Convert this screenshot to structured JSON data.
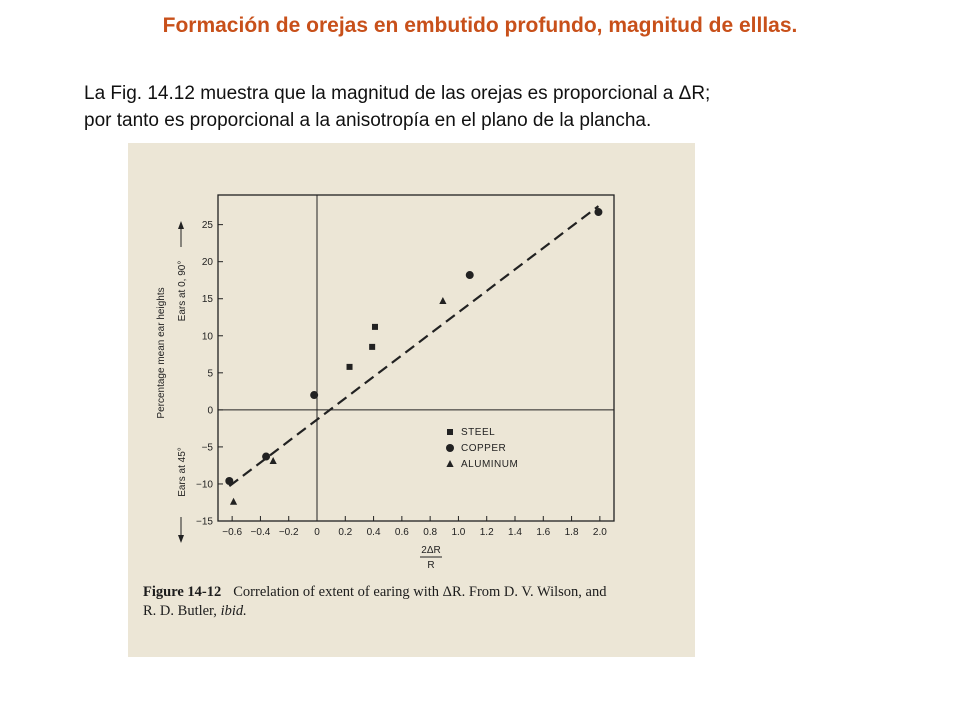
{
  "slide": {
    "title": "Formación de orejas en embutido profundo, magnitud de elllas.",
    "paragraph_lines": [
      "La Fig. 14.12 muestra que la magnitud de las orejas es proporcional a ΔR;",
      "por tanto es proporcional a la anisotropía en el plano de la plancha."
    ]
  },
  "figure": {
    "number": "Figure 14-12",
    "caption_main": "Correlation of extent of earing with ΔR. From D. V. Wilson, and",
    "caption_line2_plain": "R. D. Butler,",
    "caption_line2_italic": "ibid."
  },
  "chart_data": {
    "type": "scatter",
    "ylabel": "Percentage mean ear heights",
    "ylabel_top": "Ears at 0, 90°",
    "ylabel_bottom": "Ears at 45°",
    "xlabel_numerator": "2ΔR",
    "xlabel_denominator": "R",
    "xlim": [
      -0.7,
      2.1
    ],
    "ylim": [
      -15,
      29
    ],
    "x_ticks": [
      -0.6,
      -0.4,
      -0.2,
      0,
      0.2,
      0.4,
      0.6,
      0.8,
      1.0,
      1.2,
      1.4,
      1.6,
      1.8,
      2.0
    ],
    "x_tick_labels": [
      "−0.6",
      "−0.4",
      "−0.2",
      "0",
      "0.2",
      "0.4",
      "0.6",
      "0.8",
      "1.0",
      "1.2",
      "1.4",
      "1.6",
      "1.8",
      "2.0"
    ],
    "y_ticks": [
      -15,
      -10,
      -5,
      0,
      5,
      10,
      15,
      20,
      25
    ],
    "y_tick_labels": [
      "−15",
      "−10",
      "−5",
      "0",
      "5",
      "10",
      "15",
      "20",
      "25"
    ],
    "grid": false,
    "reference_lines": {
      "x": 0,
      "y": 0
    },
    "legend_placement": "lower-right",
    "series": [
      {
        "name": "STEEL",
        "marker": "square",
        "points": [
          [
            0.23,
            5.8
          ],
          [
            0.39,
            8.5
          ],
          [
            0.41,
            11.2
          ]
        ]
      },
      {
        "name": "COPPER",
        "marker": "circle",
        "points": [
          [
            -0.62,
            -9.6
          ],
          [
            -0.36,
            -6.3
          ],
          [
            -0.02,
            2.0
          ],
          [
            1.08,
            18.2
          ],
          [
            1.99,
            26.7
          ]
        ]
      },
      {
        "name": "ALUMINUM",
        "marker": "triangle",
        "points": [
          [
            -0.59,
            -12.4
          ],
          [
            -0.31,
            -6.9
          ],
          [
            0.89,
            14.7
          ]
        ]
      }
    ],
    "fit_line": {
      "style": "dashed",
      "from": [
        -0.62,
        -10.3
      ],
      "to": [
        1.99,
        27.5
      ]
    }
  }
}
